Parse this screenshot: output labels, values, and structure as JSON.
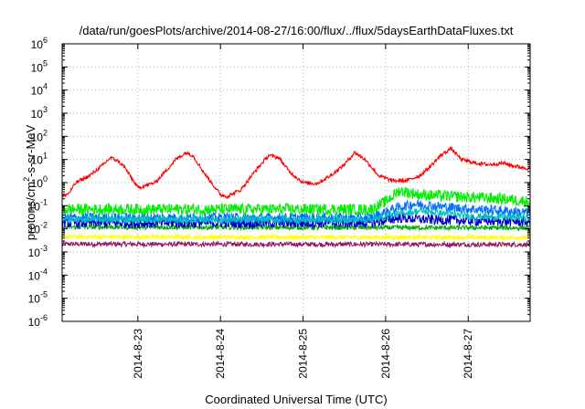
{
  "chart_data": {
    "type": "line",
    "title": "/data/run/goesPlots/archive/2014-08-27/16:00/flux/../flux/5daysEarthDataFluxes.txt",
    "xlabel": "Coordinated Universal Time (UTC)",
    "ylabel": "protons/cm²-s-sr-MeV",
    "y_scale": "log",
    "ylim": [
      1e-06,
      1000000.0
    ],
    "y_ticks": [
      {
        "base": "10",
        "exp": "-6"
      },
      {
        "base": "10",
        "exp": "-5"
      },
      {
        "base": "10",
        "exp": "-4"
      },
      {
        "base": "10",
        "exp": "-3"
      },
      {
        "base": "10",
        "exp": "-2"
      },
      {
        "base": "10",
        "exp": "-1"
      },
      {
        "base": "10",
        "exp": "0"
      },
      {
        "base": "10",
        "exp": "1"
      },
      {
        "base": "10",
        "exp": "2"
      },
      {
        "base": "10",
        "exp": "3"
      },
      {
        "base": "10",
        "exp": "4"
      },
      {
        "base": "10",
        "exp": "5"
      },
      {
        "base": "10",
        "exp": "6"
      }
    ],
    "x_range": [
      "2014-08-22T02:00",
      "2014-08-27T18:00"
    ],
    "x_ticks": [
      "2014-8-23",
      "2014-8-24",
      "2014-8-25",
      "2014-8-26",
      "2014-8-27"
    ],
    "grid": true,
    "legend": "none",
    "series": [
      {
        "color": "#ff0000",
        "noise": 0.08,
        "x": [
          "2014-08-22T02:00",
          "2014-08-22T04:00",
          "2014-08-22T06:00",
          "2014-08-22T10:00",
          "2014-08-22T14:00",
          "2014-08-22T16:00",
          "2014-08-22T18:00",
          "2014-08-22T20:00",
          "2014-08-23T00:00",
          "2014-08-23T03:00",
          "2014-08-23T05:00",
          "2014-08-23T08:00",
          "2014-08-23T11:00",
          "2014-08-23T14:00",
          "2014-08-23T16:00",
          "2014-08-23T19:00",
          "2014-08-24T00:00",
          "2014-08-24T02:00",
          "2014-08-24T06:00",
          "2014-08-24T10:00",
          "2014-08-24T14:00",
          "2014-08-24T17:00",
          "2014-08-24T20:00",
          "2014-08-25T00:00",
          "2014-08-25T04:00",
          "2014-08-25T08:00",
          "2014-08-25T12:00",
          "2014-08-25T15:00",
          "2014-08-25T18:00",
          "2014-08-25T22:00",
          "2014-08-26T02:00",
          "2014-08-26T06:00",
          "2014-08-26T10:00",
          "2014-08-26T13:00",
          "2014-08-26T16:00",
          "2014-08-26T19:00",
          "2014-08-26T22:00",
          "2014-08-27T02:00",
          "2014-08-27T06:00",
          "2014-08-27T10:00",
          "2014-08-27T14:00",
          "2014-08-27T18:00"
        ],
        "y": [
          0.25,
          0.35,
          1.0,
          2.0,
          6.0,
          12.0,
          9.0,
          5.0,
          0.6,
          0.8,
          1.0,
          3.0,
          10.0,
          20.0,
          15.0,
          3.0,
          0.3,
          0.25,
          0.5,
          3.0,
          15.0,
          12.0,
          3.0,
          1.0,
          0.9,
          2.0,
          6.0,
          20.0,
          10.0,
          2.0,
          1.2,
          1.2,
          2.0,
          5.0,
          15.0,
          30.0,
          10.0,
          7.0,
          6.0,
          7.0,
          5.0,
          4.0
        ]
      },
      {
        "color": "#00ee00",
        "noise": 0.25,
        "x": [
          "2014-08-22T02:00",
          "2014-08-25T20:00",
          "2014-08-26T00:00",
          "2014-08-26T04:00",
          "2014-08-26T10:00",
          "2014-08-26T20:00",
          "2014-08-27T10:00",
          "2014-08-27T18:00"
        ],
        "y": [
          0.07,
          0.07,
          0.15,
          0.45,
          0.3,
          0.25,
          0.2,
          0.15
        ]
      },
      {
        "color": "#00c0c0",
        "noise": 0.15,
        "x": [
          "2014-08-22T02:00",
          "2014-08-25T20:00",
          "2014-08-26T02:00",
          "2014-08-26T10:00",
          "2014-08-27T00:00",
          "2014-08-27T18:00"
        ],
        "y": [
          0.025,
          0.025,
          0.04,
          0.06,
          0.035,
          0.03
        ]
      },
      {
        "color": "#0070ff",
        "noise": 0.22,
        "x": [
          "2014-08-22T02:00",
          "2014-08-25T20:00",
          "2014-08-26T02:00",
          "2014-08-26T08:00",
          "2014-08-26T20:00",
          "2014-08-27T18:00"
        ],
        "y": [
          0.03,
          0.03,
          0.07,
          0.12,
          0.08,
          0.05
        ]
      },
      {
        "color": "#0000cc",
        "noise": 0.22,
        "x": [
          "2014-08-22T02:00",
          "2014-08-25T20:00",
          "2014-08-26T04:00",
          "2014-08-26T12:00",
          "2014-08-27T18:00"
        ],
        "y": [
          0.018,
          0.018,
          0.03,
          0.025,
          0.02
        ]
      },
      {
        "color": "#00b000",
        "noise": 0.1,
        "x": [
          "2014-08-22T02:00",
          "2014-08-27T18:00"
        ],
        "y": [
          0.012,
          0.011
        ]
      },
      {
        "color": "#ffff00",
        "noise": 0.1,
        "x": [
          "2014-08-22T02:00",
          "2014-08-27T18:00"
        ],
        "y": [
          0.0045,
          0.0042
        ]
      },
      {
        "color": "#8b1c62",
        "noise": 0.1,
        "x": [
          "2014-08-22T02:00",
          "2014-08-27T18:00"
        ],
        "y": [
          0.0022,
          0.0021
        ]
      }
    ]
  }
}
